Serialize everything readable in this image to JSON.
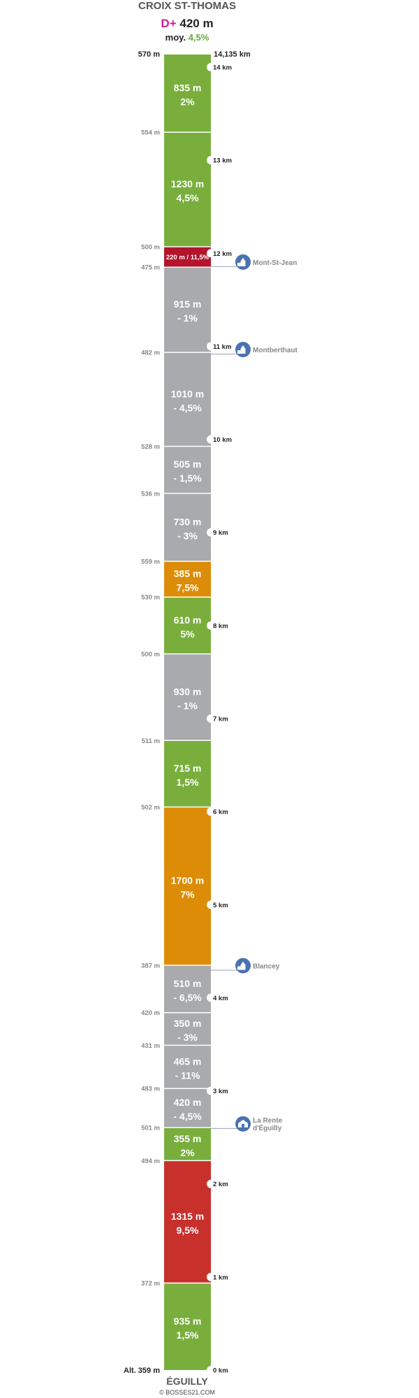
{
  "header": {
    "climb_name": "CROIX ST-THOMAS",
    "elev_gain_prefix": "D+",
    "elev_gain_value": "420 m",
    "avg_prefix": "moy.",
    "avg_value": "4,5%"
  },
  "footer": {
    "finish_name": "ÉGUILLY",
    "credit": "© BOSSES21.COM"
  },
  "colors": {
    "green": "#79ae3d",
    "orange": "#dd8c08",
    "red": "#c8302c",
    "dark_red": "#b3142c",
    "gray": "#a9aaad",
    "marker": "#4a72b4"
  },
  "chart_data": {
    "type": "bar",
    "orientation": "vertical-strip",
    "top_left_label": "570 m",
    "top_right_label": "14,135 km",
    "bottom_left_label": "Alt. 359 m",
    "total_km": 14.135,
    "segments": [
      {
        "length_m": 935,
        "grade": "1,5%",
        "label": "935 m",
        "color": "green"
      },
      {
        "length_m": 1315,
        "grade": "9,5%",
        "label": "1315 m",
        "color": "red"
      },
      {
        "length_m": 355,
        "grade": "2%",
        "label": "355 m",
        "color": "green"
      },
      {
        "length_m": 420,
        "grade": "- 4,5%",
        "label": "420 m",
        "color": "gray"
      },
      {
        "length_m": 465,
        "grade": "- 11%",
        "label": "465 m",
        "color": "gray"
      },
      {
        "length_m": 350,
        "grade": "- 3%",
        "label": "350 m",
        "color": "gray"
      },
      {
        "length_m": 510,
        "grade": "- 6,5%",
        "label": "510 m",
        "color": "gray"
      },
      {
        "length_m": 1700,
        "grade": "7%",
        "label": "1700 m",
        "color": "orange"
      },
      {
        "length_m": 715,
        "grade": "1,5%",
        "label": "715 m",
        "color": "green"
      },
      {
        "length_m": 930,
        "grade": "- 1%",
        "label": "930 m",
        "color": "gray"
      },
      {
        "length_m": 610,
        "grade": "5%",
        "label": "610 m",
        "color": "green"
      },
      {
        "length_m": 385,
        "grade": "7,5%",
        "label": "385 m",
        "color": "orange"
      },
      {
        "length_m": 730,
        "grade": "- 3%",
        "label": "730 m",
        "color": "gray"
      },
      {
        "length_m": 505,
        "grade": "- 1,5%",
        "label": "505 m",
        "color": "gray"
      },
      {
        "length_m": 1010,
        "grade": "- 4,5%",
        "label": "1010 m",
        "color": "gray"
      },
      {
        "length_m": 915,
        "grade": "- 1%",
        "label": "915 m",
        "color": "gray"
      },
      {
        "length_m": 220,
        "grade": "11,5%",
        "label": "220 m / 11,5%",
        "color": "dark_red",
        "inline": true
      },
      {
        "length_m": 1230,
        "grade": "4,5%",
        "label": "1230 m",
        "color": "green"
      },
      {
        "length_m": 835,
        "grade": "2%",
        "label": "835 m",
        "color": "green"
      }
    ],
    "altitudes": [
      {
        "after_segment": 1,
        "label": "372 m"
      },
      {
        "after_segment": 2,
        "label": "494 m"
      },
      {
        "after_segment": 3,
        "label": "501 m"
      },
      {
        "after_segment": 4,
        "label": "483 m"
      },
      {
        "after_segment": 5,
        "label": "431 m"
      },
      {
        "after_segment": 6,
        "label": "420 m"
      },
      {
        "after_segment": 7,
        "label": "387 m"
      },
      {
        "after_segment": 8,
        "label": "502 m"
      },
      {
        "after_segment": 9,
        "label": "511 m"
      },
      {
        "after_segment": 10,
        "label": "500 m"
      },
      {
        "after_segment": 11,
        "label": "530 m"
      },
      {
        "after_segment": 12,
        "label": "559 m"
      },
      {
        "after_segment": 13,
        "label": "536 m"
      },
      {
        "after_segment": 14,
        "label": "528 m"
      },
      {
        "after_segment": 15,
        "label": "482 m"
      },
      {
        "after_segment": 16,
        "label": "475 m"
      },
      {
        "after_segment": 17,
        "label": "500 m"
      },
      {
        "after_segment": 18,
        "label": "554 m"
      }
    ],
    "km_markers": [
      {
        "km": 0,
        "label": "0 km"
      },
      {
        "km": 1,
        "label": "1 km"
      },
      {
        "km": 2,
        "label": "2 km"
      },
      {
        "km": 3,
        "label": "3 km"
      },
      {
        "km": 4,
        "label": "4 km"
      },
      {
        "km": 5,
        "label": "5 km"
      },
      {
        "km": 6,
        "label": "6 km"
      },
      {
        "km": 7,
        "label": "7 km"
      },
      {
        "km": 8,
        "label": "8 km"
      },
      {
        "km": 9,
        "label": "9 km"
      },
      {
        "km": 10,
        "label": "10 km"
      },
      {
        "km": 11,
        "label": "11 km"
      },
      {
        "km": 12,
        "label": "12 km"
      },
      {
        "km": 13,
        "label": "13 km"
      },
      {
        "km": 14,
        "label": "14 km"
      }
    ],
    "places": [
      {
        "name": "La Rente d'Éguilly",
        "lines": [
          "La Rente",
          "d'Éguilly"
        ],
        "km": 2.6,
        "icon": "farm-icon"
      },
      {
        "name": "Blancey",
        "lines": [
          "Blancey"
        ],
        "km": 4.3,
        "icon": "church-icon"
      },
      {
        "name": "Montberthaut",
        "lines": [
          "Montberthaut"
        ],
        "km": 10.92,
        "icon": "church-icon"
      },
      {
        "name": "Mont-St-Jean",
        "lines": [
          "Mont-St-Jean"
        ],
        "km": 11.86,
        "icon": "church-icon"
      }
    ]
  }
}
